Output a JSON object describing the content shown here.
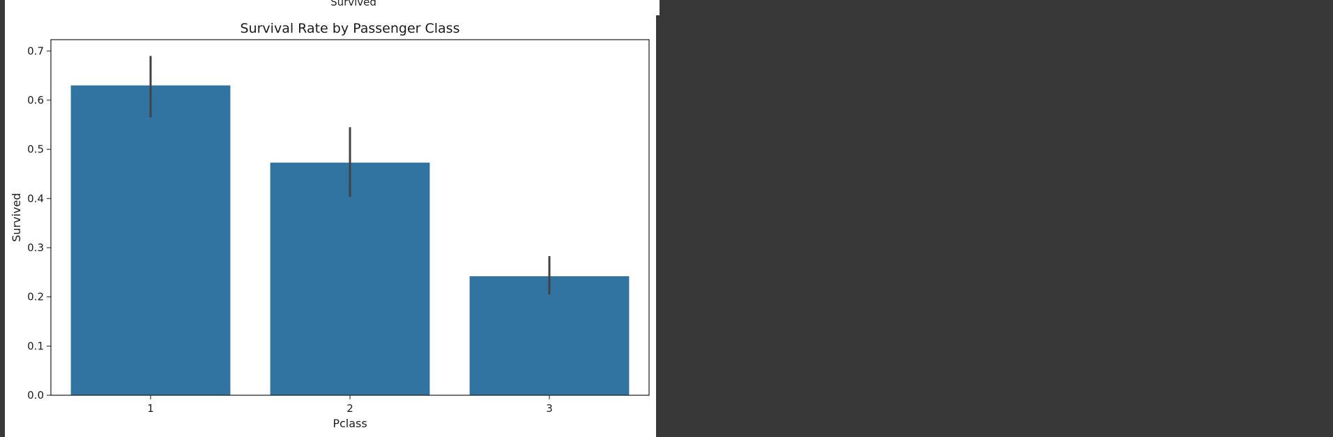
{
  "header": {
    "cut_label": "Survived"
  },
  "colors": {
    "bar": "#3274a1",
    "errorbar": "#424242",
    "background": "#383838"
  },
  "chart_data": {
    "type": "bar",
    "title": "Survival Rate by Passenger Class",
    "xlabel": "Pclass",
    "ylabel": "Survived",
    "categories": [
      "1",
      "2",
      "3"
    ],
    "values": [
      0.63,
      0.473,
      0.242
    ],
    "error_low": [
      0.565,
      0.403,
      0.205
    ],
    "error_high": [
      0.69,
      0.545,
      0.283
    ],
    "ylim": [
      0,
      0.723
    ],
    "yticks": [
      0.0,
      0.1,
      0.2,
      0.3,
      0.4,
      0.5,
      0.6,
      0.7
    ],
    "ytick_labels": [
      "0.0",
      "0.1",
      "0.2",
      "0.3",
      "0.4",
      "0.5",
      "0.6",
      "0.7"
    ],
    "grid": false,
    "legend": "none"
  }
}
